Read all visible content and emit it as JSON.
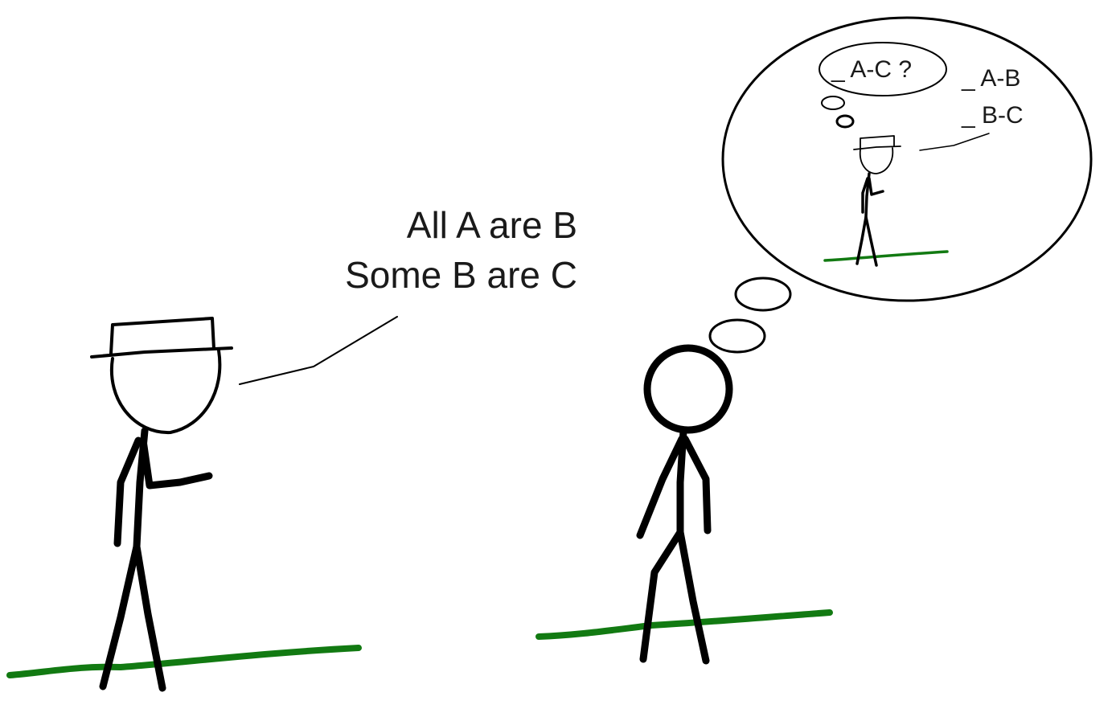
{
  "speech": {
    "line1": "All A are B",
    "line2": "Some B are C"
  },
  "thought": {
    "question": "_ A-C ?",
    "premise1": "_ A-B",
    "premise2": "_ B-C"
  },
  "colors": {
    "ink": "#000000",
    "ground": "#127a12"
  }
}
